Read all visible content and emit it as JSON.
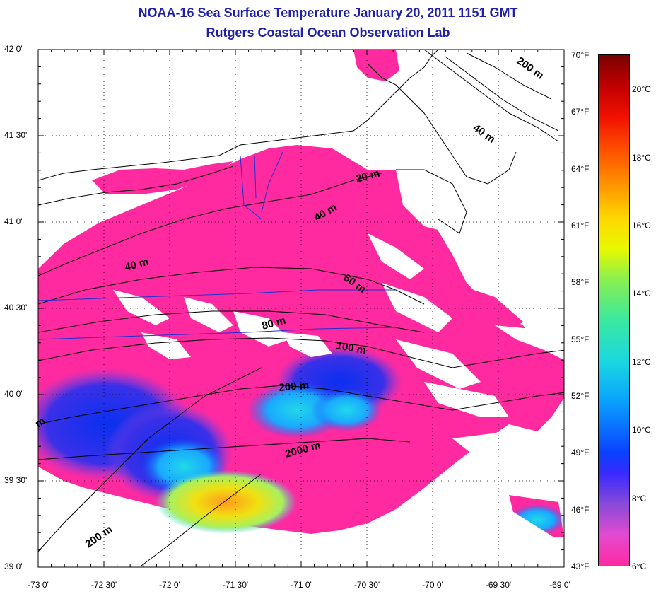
{
  "title": "NOAA-16 Sea Surface Temperature January 20, 2011 1151 GMT",
  "subtitle": "Rutgers Coastal Ocean Observation Lab",
  "lat_labels": [
    "42 0'",
    "41 30'",
    "41 0'",
    "40 30'",
    "40 0'",
    "39 30'",
    "39 0'"
  ],
  "lon_labels": [
    "-73 0'",
    "-72 30'",
    "-72 0'",
    "-71 30'",
    "-71 0'",
    "-70 30'",
    "-70 0'",
    "-69 30'",
    "-69 0'"
  ],
  "colorbar": {
    "fahrenheit_labels": [
      "70°F",
      "67°F",
      "64°F",
      "61°F",
      "58°F",
      "55°F",
      "52°F",
      "49°F",
      "46°F",
      "43°F"
    ],
    "celsius_labels": [
      "20°C",
      "18°C",
      "16°C",
      "14°C",
      "12°C",
      "10°C",
      "8°C",
      "6°C"
    ],
    "colors": [
      "#ff2aa0",
      "#3a2aff",
      "#0aa0ff",
      "#3ae8a0",
      "#e8f800",
      "#ff9a00",
      "#f01000",
      "#7a0000"
    ]
  },
  "depth_labels": [
    "200 m",
    "40 m",
    "20 m",
    "40 m",
    "40 m",
    "60 m",
    "80 m",
    "100 m",
    "200 m",
    "2000 m",
    "200 m",
    "m"
  ],
  "colors": {
    "title": "#1f1fa8",
    "water_cold": "#ff2aa0",
    "land": "#ffffff"
  }
}
